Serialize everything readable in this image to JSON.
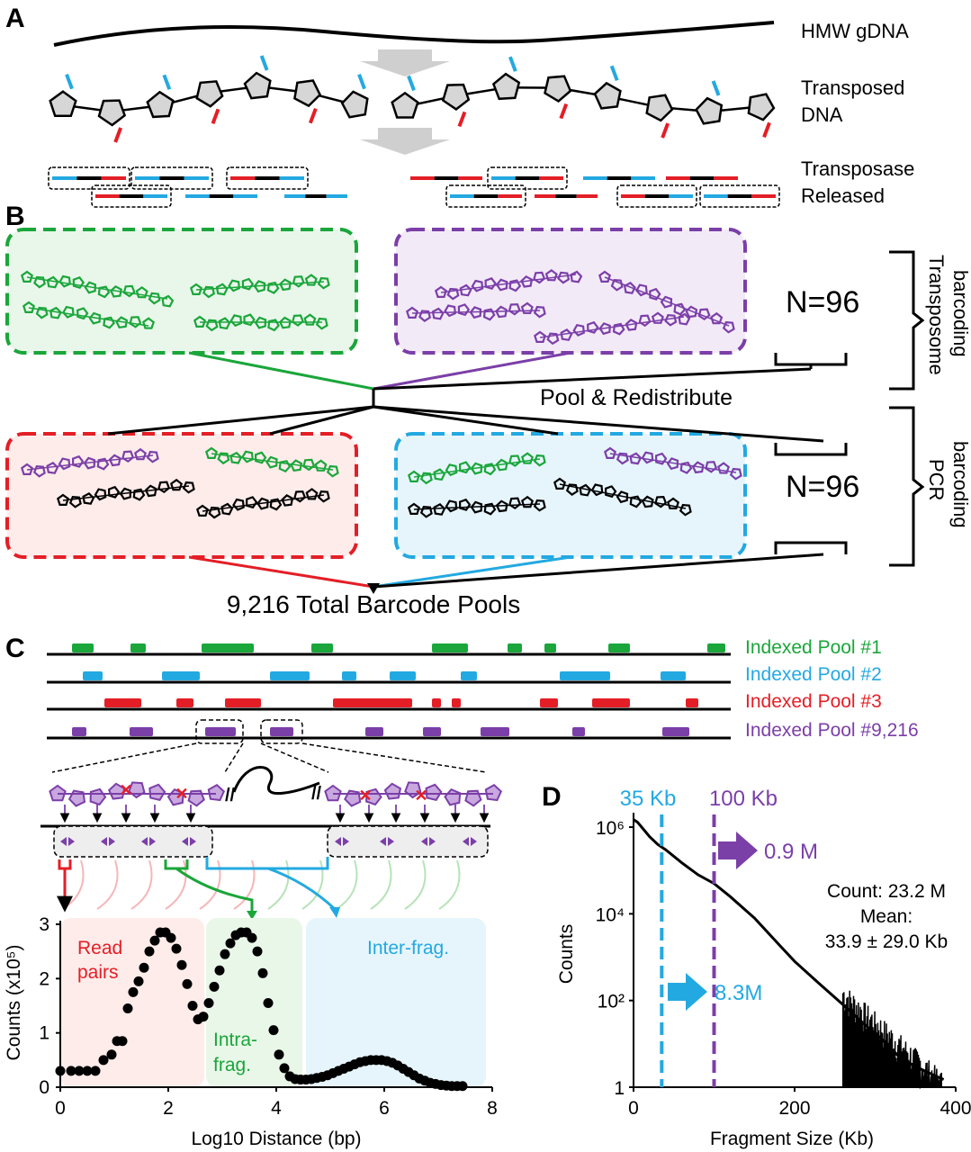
{
  "panels": {
    "a": "A",
    "b": "B",
    "c": "C",
    "d": "D"
  },
  "panel_a": {
    "labels": [
      "HMW gDNA",
      "Transposed",
      "DNA",
      "Transposase",
      "Released"
    ]
  },
  "panel_b": {
    "n_top": "N=96",
    "n_bottom": "N=96",
    "bracket_top": [
      "Transposome",
      "barcoding"
    ],
    "bracket_bottom": [
      "PCR",
      "barcoding"
    ],
    "pool_text": "Pool & Redistribute",
    "total_text": "9,216 Total Barcode Pools"
  },
  "panel_c": {
    "pools": [
      {
        "label": "Indexed Pool #1",
        "color": "#1aa63a"
      },
      {
        "label": "Indexed Pool #2",
        "color": "#23a9e1"
      },
      {
        "label": "Indexed Pool #3",
        "color": "#e41e26"
      },
      {
        "label": "Indexed Pool #9,216",
        "color": "#7b3fa8"
      }
    ],
    "regions": {
      "read_pairs": [
        "Read",
        "pairs"
      ],
      "intra_frag": [
        "Intra-",
        "frag."
      ],
      "inter_frag": "Inter-frag."
    }
  },
  "chart_data": [
    {
      "type": "scatter",
      "xlabel": "Log10 Distance (bp)",
      "ylabel": "Counts (x10⁵)",
      "xlim": [
        0,
        8
      ],
      "ylim": [
        0,
        3
      ],
      "xticks": [
        "0",
        "2",
        "4",
        "6",
        "8"
      ],
      "yticks": [
        "0",
        "1",
        "2",
        "3"
      ],
      "x": [
        0.0,
        0.2,
        0.35,
        0.5,
        0.65,
        0.8,
        0.95,
        1.05,
        1.15,
        1.25,
        1.35,
        1.45,
        1.55,
        1.65,
        1.75,
        1.85,
        1.95,
        2.05,
        2.15,
        2.25,
        2.35,
        2.45,
        2.55,
        2.65,
        2.75,
        2.85,
        2.95,
        3.05,
        3.15,
        3.25,
        3.35,
        3.45,
        3.55,
        3.65,
        3.75,
        3.85,
        3.95,
        4.05,
        4.15,
        4.25,
        4.35,
        4.45,
        4.55,
        4.65,
        4.75,
        4.85,
        4.95,
        5.05,
        5.15,
        5.25,
        5.35,
        5.45,
        5.55,
        5.65,
        5.75,
        5.85,
        5.95,
        6.05,
        6.15,
        6.25,
        6.35,
        6.45,
        6.55,
        6.65,
        6.75,
        6.85,
        6.95,
        7.05,
        7.15,
        7.25,
        7.35,
        7.45
      ],
      "y": [
        0.3,
        0.3,
        0.3,
        0.3,
        0.3,
        0.5,
        0.6,
        0.85,
        0.85,
        1.45,
        1.75,
        1.95,
        2.2,
        2.5,
        2.7,
        2.85,
        2.85,
        2.75,
        2.55,
        2.25,
        1.9,
        1.5,
        1.25,
        1.3,
        1.55,
        1.85,
        2.15,
        2.45,
        2.65,
        2.8,
        2.85,
        2.85,
        2.75,
        2.5,
        2.1,
        1.55,
        1.05,
        0.6,
        0.35,
        0.2,
        0.15,
        0.14,
        0.14,
        0.15,
        0.17,
        0.19,
        0.22,
        0.26,
        0.3,
        0.34,
        0.38,
        0.42,
        0.46,
        0.48,
        0.5,
        0.5,
        0.5,
        0.48,
        0.45,
        0.4,
        0.34,
        0.28,
        0.22,
        0.16,
        0.12,
        0.08,
        0.06,
        0.04,
        0.03,
        0.02,
        0.02,
        0.02
      ]
    },
    {
      "type": "line",
      "xlabel": "Fragment Size (Kb)",
      "ylabel": "Counts",
      "xlim": [
        0,
        400
      ],
      "ylog": true,
      "xticks": [
        "0",
        "200",
        "400"
      ],
      "yticks": [
        "1",
        "10²",
        "10⁴",
        "10⁶"
      ],
      "x": [
        0,
        5,
        10,
        20,
        30,
        40,
        60,
        80,
        100,
        120,
        150,
        180,
        200,
        230,
        260,
        290,
        310,
        330,
        350,
        370,
        385
      ],
      "y": [
        1500000,
        1300000,
        1000000,
        600000,
        400000,
        300000,
        150000,
        80000,
        50000,
        25000,
        8000,
        2000,
        800,
        250,
        80,
        25,
        12,
        5,
        3,
        2,
        1.5
      ],
      "annotations": {
        "line1": "35 Kb",
        "line2": "100 Kb",
        "arrow_purple": "0.9 M",
        "arrow_blue": "8.3M",
        "count": "Count: 23.2 M",
        "mean": "Mean:",
        "mean_val": "33.9 ± 29.0 Kb"
      }
    }
  ]
}
